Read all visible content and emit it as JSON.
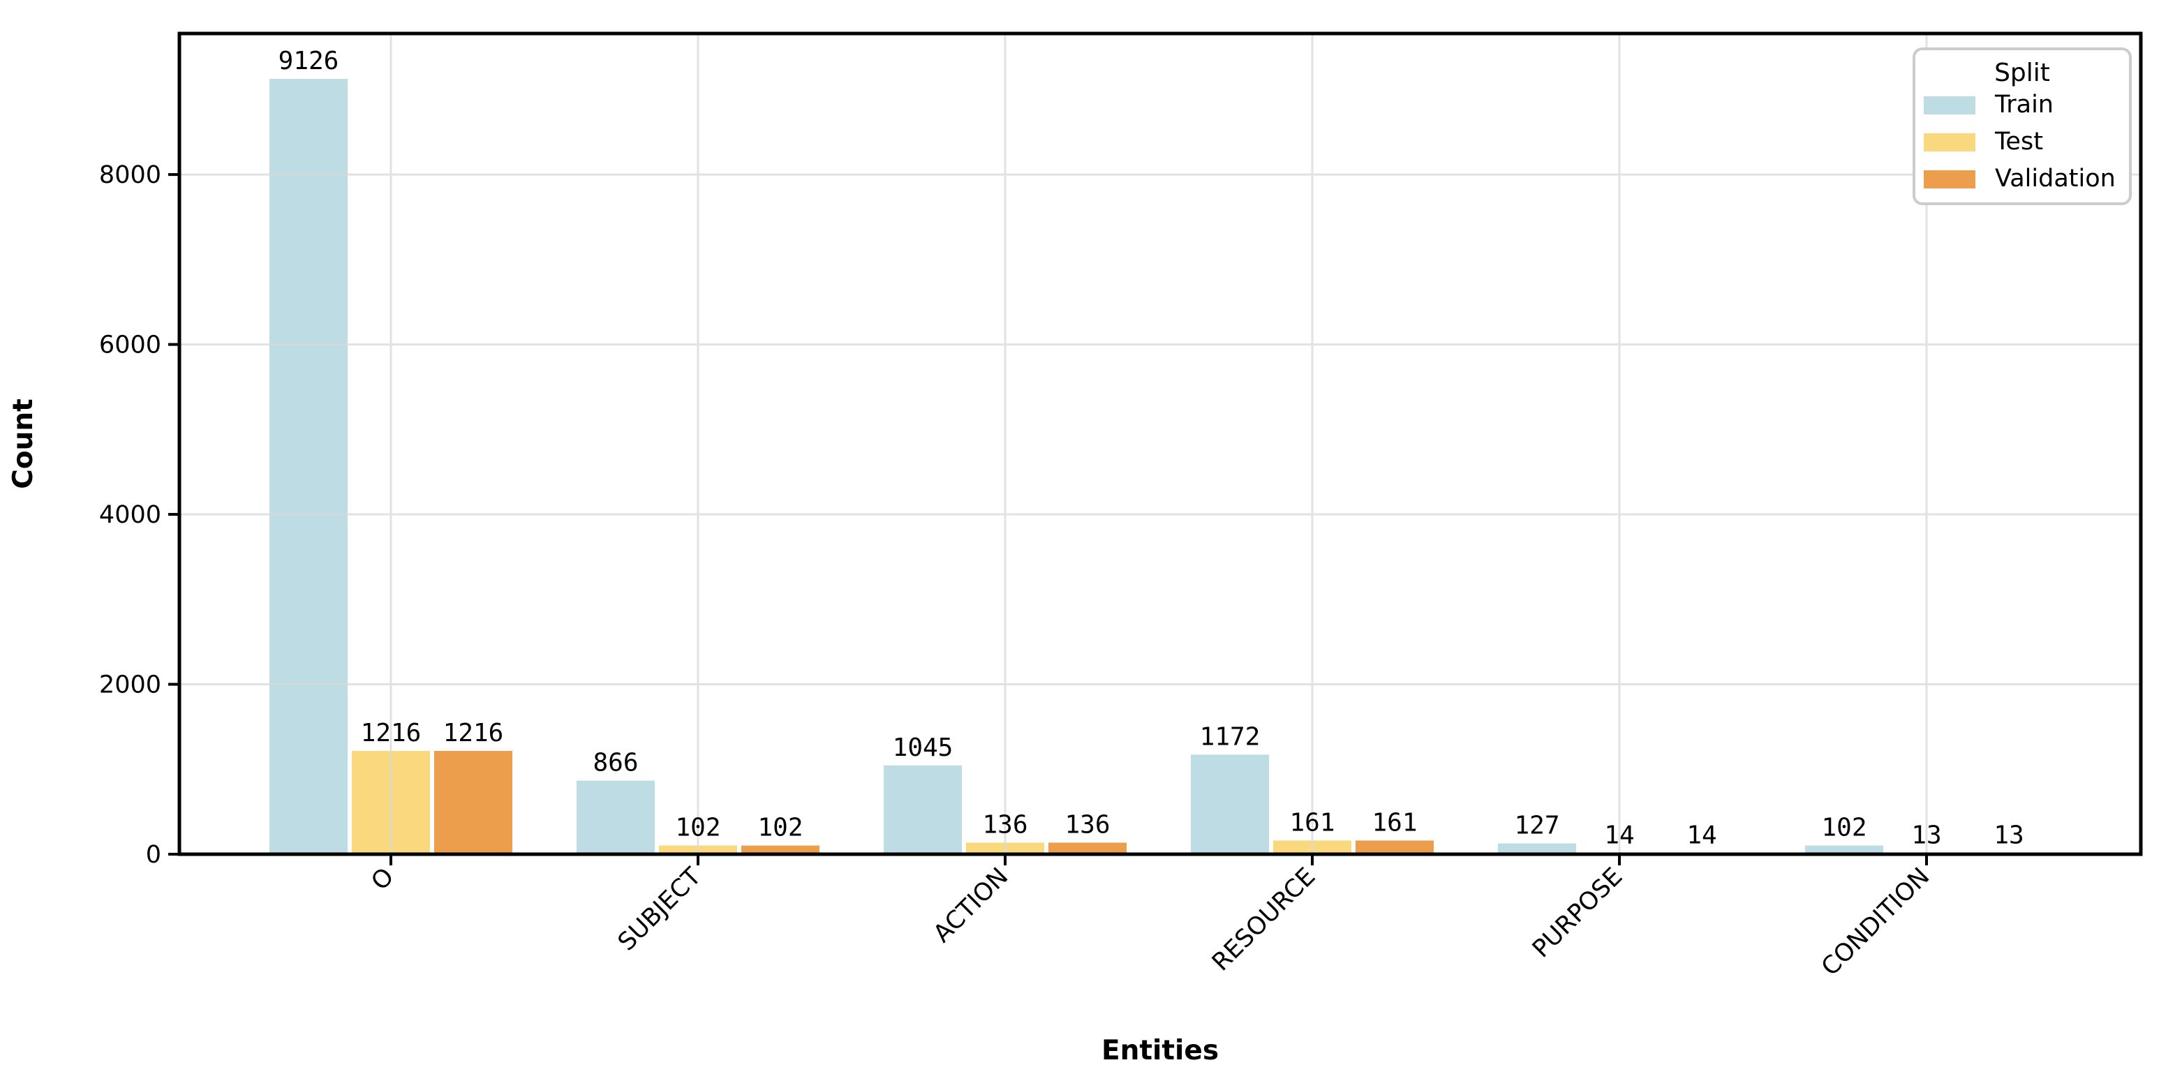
{
  "chart_data": {
    "type": "bar",
    "title": "",
    "xlabel": "Entities",
    "ylabel": "Count",
    "categories": [
      "O",
      "SUBJECT",
      "ACTION",
      "RESOURCE",
      "PURPOSE",
      "CONDITION"
    ],
    "series": [
      {
        "name": "Train",
        "color": "#bedce3",
        "values": [
          9126,
          866,
          1045,
          1172,
          127,
          102
        ]
      },
      {
        "name": "Test",
        "color": "#fad97e",
        "values": [
          1216,
          102,
          136,
          161,
          14,
          13
        ]
      },
      {
        "name": "Validation",
        "color": "#ed9e4d",
        "values": [
          1216,
          102,
          136,
          161,
          14,
          13
        ]
      }
    ],
    "bar_value_labels": [
      [
        "9126",
        "866",
        "1045",
        "1172",
        "127",
        "102"
      ],
      [
        "1216",
        "102",
        "136",
        "161",
        "14",
        "13"
      ],
      [
        "1216",
        "102",
        "136",
        "161",
        "14",
        "13"
      ]
    ],
    "yticks": [
      "0",
      "2000",
      "4000",
      "6000",
      "8000"
    ],
    "ylim": [
      0,
      9660
    ],
    "grid": true,
    "legend": {
      "title": "Split",
      "position": "upper right",
      "entries": [
        "Train",
        "Test",
        "Validation"
      ]
    },
    "colors": {
      "grid": "#d9d9d9",
      "spine": "#000000",
      "legend_border": "#cccccc",
      "background": "#ffffff"
    }
  }
}
